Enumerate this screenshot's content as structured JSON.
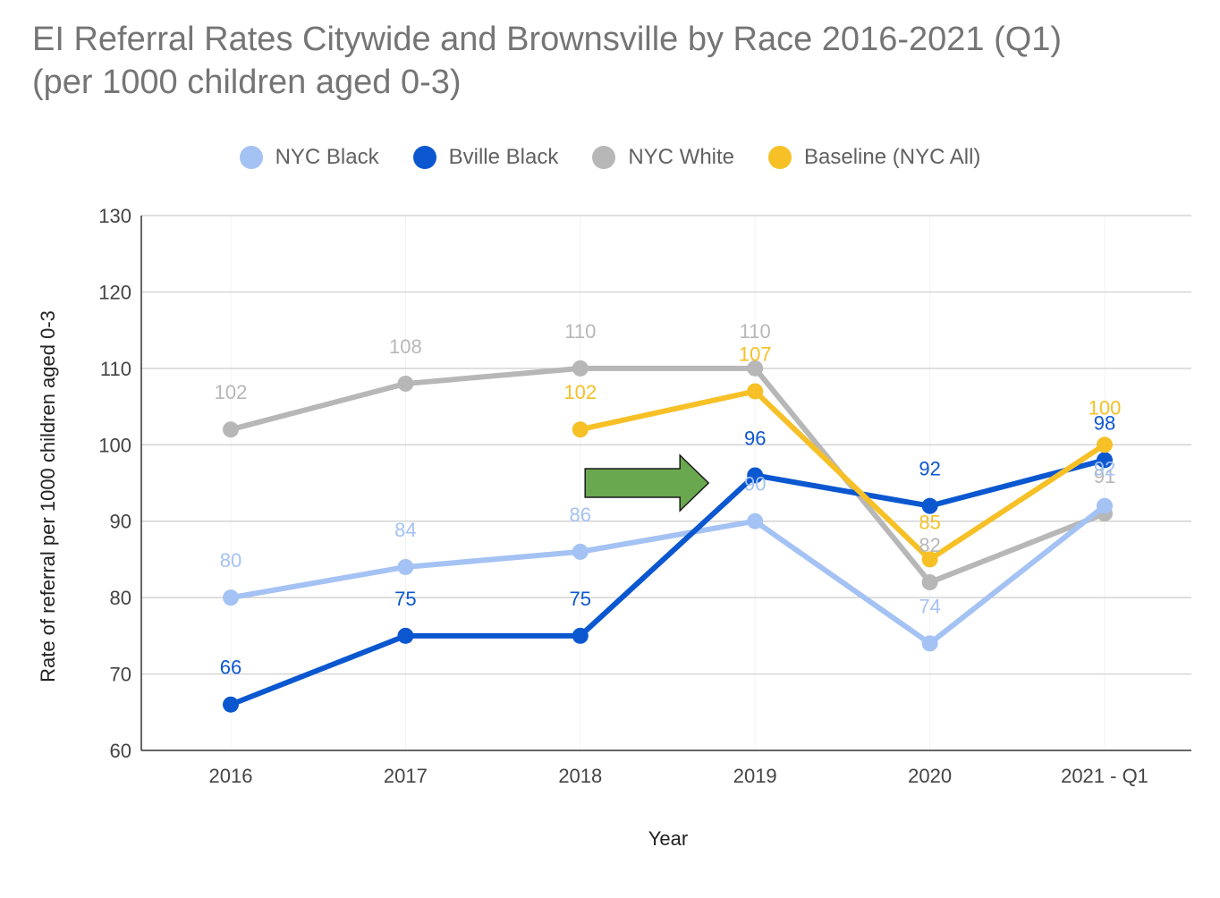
{
  "chart_data": {
    "type": "line",
    "title_lines": [
      "EI Referral Rates Citywide and Brownsville by Race 2016-2021 (Q1)",
      "(per 1000 children aged 0-3)"
    ],
    "xlabel": "Year",
    "ylabel": "Rate of referral per 1000 children aged 0-3",
    "categories": [
      "2016",
      "2017",
      "2018",
      "2019",
      "2020",
      "2021 - Q1"
    ],
    "ylim": [
      60,
      130
    ],
    "yticks": [
      60,
      70,
      80,
      90,
      100,
      110,
      120,
      130
    ],
    "grid": true,
    "legend_position": "top-center",
    "series": [
      {
        "name": "NYC White",
        "color": "#b7b7b7",
        "values": [
          102,
          108,
          110,
          110,
          82,
          91
        ]
      },
      {
        "name": "NYC Black",
        "color": "#a4c2f4",
        "values": [
          80,
          84,
          86,
          90,
          74,
          92
        ]
      },
      {
        "name": "Bville Black",
        "color": "#0b57d0",
        "values": [
          66,
          75,
          75,
          96,
          92,
          98
        ]
      },
      {
        "name": "Baseline (NYC All)",
        "color": "#f6c026",
        "values": [
          null,
          null,
          102,
          107,
          85,
          100
        ]
      }
    ],
    "legend_order": [
      "NYC Black",
      "Bville Black",
      "NYC White",
      "Baseline (NYC All)"
    ],
    "annotations": [
      {
        "type": "arrow",
        "direction": "right",
        "color": "#6aa84f",
        "points_to": "2019"
      }
    ]
  }
}
